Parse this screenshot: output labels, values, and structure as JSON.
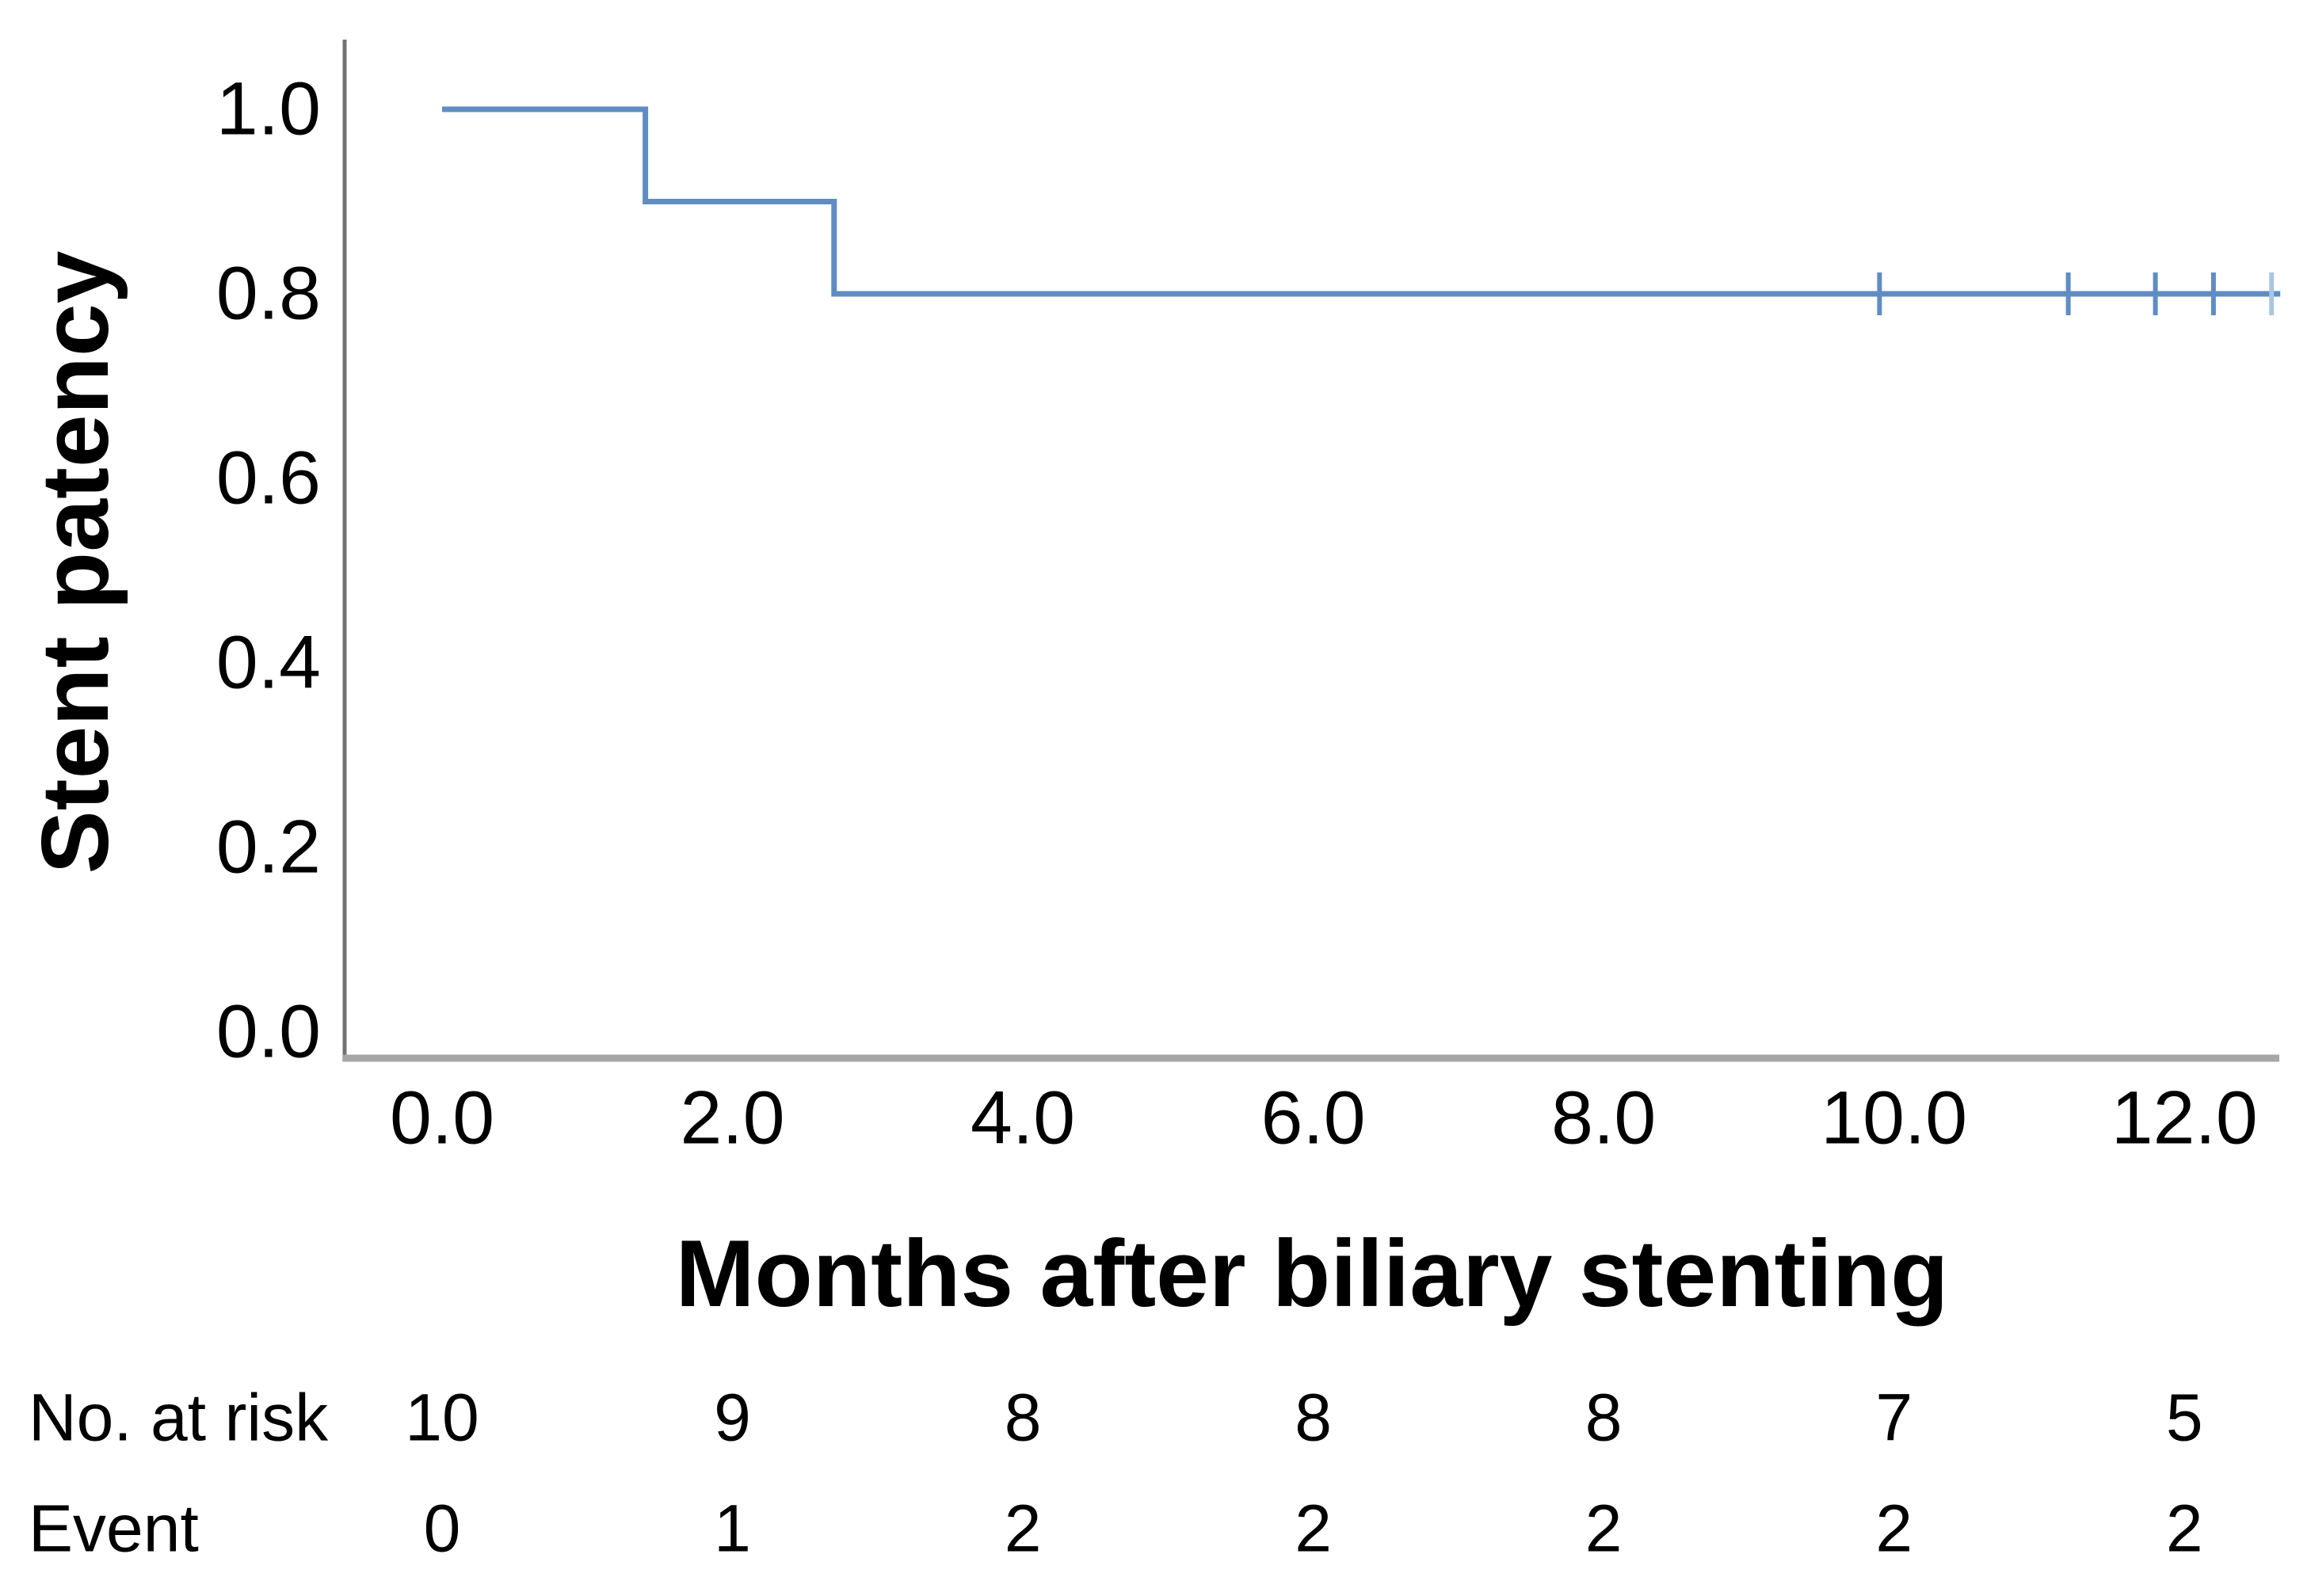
{
  "chart_data": {
    "type": "line",
    "subtype": "kaplan-meier-step",
    "title": "",
    "xlabel": "Months after biliary stenting",
    "ylabel": "Stent patency",
    "x_ticks": {
      "values": [
        0,
        2,
        4,
        6,
        8,
        10,
        12
      ],
      "labels": [
        "0.0",
        "2.0",
        "4.0",
        "6.0",
        "8.0",
        "10.0",
        "12.0"
      ]
    },
    "y_ticks": {
      "values": [
        0,
        0.2,
        0.4,
        0.6,
        0.8,
        1.0
      ],
      "labels": [
        "0.0",
        "0.2",
        "0.4",
        "0.6",
        "0.8",
        "1.0"
      ]
    },
    "xlim": [
      -0.7,
      12.7
    ],
    "ylim": [
      0,
      1.06
    ],
    "grid": false,
    "legend_position": "none",
    "series": [
      {
        "name": "Stent patency",
        "color": "#5f8dc3",
        "points": [
          [
            0,
            1.0
          ],
          [
            1.4,
            1.0
          ],
          [
            1.4,
            0.9
          ],
          [
            2.7,
            0.9
          ],
          [
            2.7,
            0.8
          ],
          [
            12.66,
            0.8
          ]
        ],
        "censor_marks": [
          [
            9.9,
            0.8
          ],
          [
            11.2,
            0.8
          ],
          [
            11.8,
            0.8
          ],
          [
            12.2,
            0.8
          ]
        ],
        "censor_marks_faint": [
          [
            12.6,
            0.8
          ]
        ]
      }
    ],
    "risk_table": {
      "time_points": [
        0,
        2,
        4,
        6,
        8,
        10,
        12
      ],
      "rows": [
        {
          "label": "No. at risk",
          "values": [
            "10",
            "9",
            "8",
            "8",
            "8",
            "7",
            "5"
          ]
        },
        {
          "label": "Event",
          "values": [
            "0",
            "1",
            "2",
            "2",
            "2",
            "2",
            "2"
          ]
        }
      ]
    }
  },
  "colors": {
    "curve": "#5f8dc3",
    "curve_faint": "#a9c6e2",
    "x_axis": "#a6a6a6",
    "y_axis": "#737373",
    "text": "#000000",
    "background": "#ffffff"
  }
}
